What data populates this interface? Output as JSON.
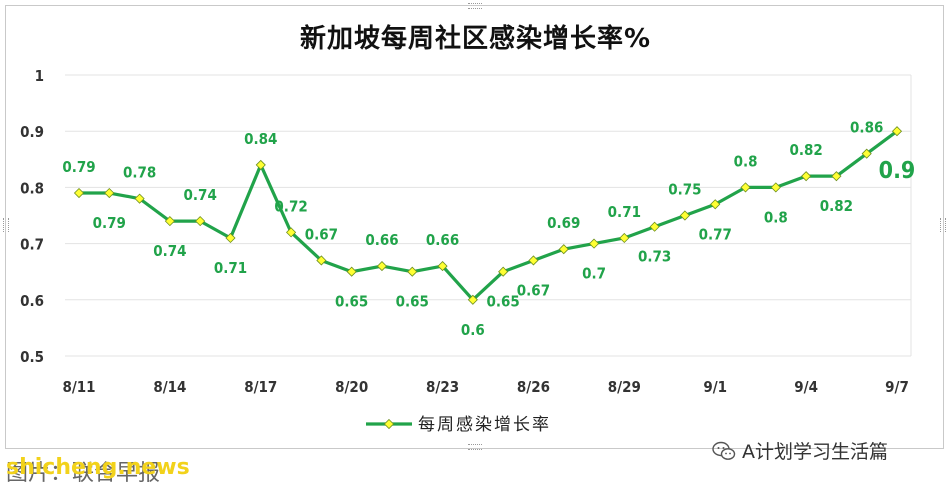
{
  "chart_data": {
    "type": "line",
    "title": "新加坡每周社区感染增长率%",
    "legend": {
      "label": "每周感染增长率",
      "placement": "bottom"
    },
    "ylim": [
      0.5,
      1
    ],
    "yticks": [
      "0.5",
      "0.6",
      "0.7",
      "0.8",
      "0.9",
      "1"
    ],
    "xticks": [
      "8/11",
      "8/14",
      "8/17",
      "8/20",
      "8/23",
      "8/26",
      "8/29",
      "9/1",
      "9/4",
      "9/7"
    ],
    "series": [
      {
        "name": "每周感染增长率",
        "color": "#21a34a",
        "marker_color": "#ffff33",
        "x": [
          "8/11",
          "8/12",
          "8/13",
          "8/14",
          "8/15",
          "8/16",
          "8/17",
          "8/18",
          "8/19",
          "8/20",
          "8/21",
          "8/22",
          "8/23",
          "8/24",
          "8/25",
          "8/26",
          "8/27",
          "8/28",
          "8/29",
          "8/30",
          "8/31",
          "9/1",
          "9/2",
          "9/3",
          "9/4",
          "9/5",
          "9/6",
          "9/7"
        ],
        "values": [
          0.79,
          0.79,
          0.78,
          0.74,
          0.74,
          0.71,
          0.84,
          0.72,
          0.67,
          0.65,
          0.66,
          0.65,
          0.66,
          0.6,
          0.65,
          0.67,
          0.69,
          0.7,
          0.71,
          0.73,
          0.75,
          0.77,
          0.8,
          0.8,
          0.82,
          0.82,
          0.86,
          0.9
        ],
        "labels": [
          "0.79",
          "0.79",
          "0.78",
          "0.74",
          "0.74",
          "0.71",
          "0.84",
          "0.72",
          "0.67",
          "0.65",
          "0.66",
          "0.65",
          "0.66",
          "0.6",
          "0.65",
          "0.67",
          "0.69",
          "0.7",
          "0.71",
          "0.73",
          "0.75",
          "0.77",
          "0.8",
          "0.8",
          "0.82",
          "0.82",
          "0.86",
          "0.9"
        ],
        "label_side": [
          "above",
          "below",
          "above",
          "below",
          "above",
          "below",
          "above",
          "above",
          "above",
          "below",
          "above",
          "below",
          "above",
          "below",
          "below",
          "below",
          "above",
          "below",
          "above",
          "below",
          "above",
          "below",
          "above",
          "below",
          "above",
          "below",
          "above",
          "right"
        ]
      }
    ],
    "grid": true
  },
  "watermark": {
    "right_text": "A计划学习生活篇",
    "left_text": "图片：联合早报",
    "brand_text": "shicheng.news"
  }
}
